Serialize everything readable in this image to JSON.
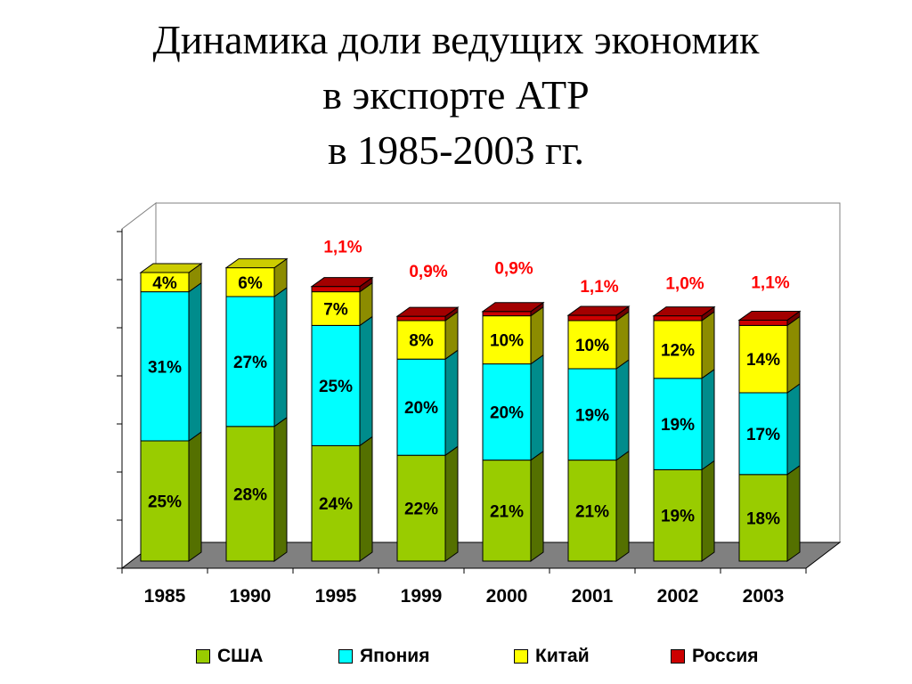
{
  "slide": {
    "title_lines": [
      "Динамика доли ведущих экономик",
      "в экспорте АТР",
      "в 1985-2003 гг."
    ]
  },
  "chart_data": {
    "type": "bar",
    "stacked": true,
    "three_d": true,
    "title": "Динамика доли ведущих экономик в экспорте АТР в 1985-2003 гг.",
    "xlabel": "",
    "ylabel": "",
    "categories": [
      "1985",
      "1990",
      "1995",
      "1999",
      "2000",
      "2001",
      "2002",
      "2003"
    ],
    "ylim": [
      0,
      70
    ],
    "y_tick_labels_shown": false,
    "legend_position": "bottom",
    "series": [
      {
        "name": "США",
        "color": "#99cc00",
        "values": [
          25,
          28,
          24,
          22,
          21,
          21,
          19,
          18
        ],
        "labels": [
          "25%",
          "28%",
          "24%",
          "22%",
          "21%",
          "21%",
          "19%",
          "18%"
        ],
        "label_color": "#000000"
      },
      {
        "name": "Япония",
        "color": "#00ffff",
        "values": [
          31,
          27,
          25,
          20,
          20,
          19,
          19,
          17
        ],
        "labels": [
          "31%",
          "27%",
          "25%",
          "20%",
          "20%",
          "19%",
          "19%",
          "17%"
        ],
        "label_color": "#000000"
      },
      {
        "name": "Китай",
        "color": "#ffff00",
        "values": [
          4,
          6,
          7,
          8,
          10,
          10,
          12,
          14
        ],
        "labels": [
          "4%",
          "6%",
          "7%",
          "8%",
          "10%",
          "10%",
          "12%",
          "14%"
        ],
        "label_color": "#000000"
      },
      {
        "name": "Россия",
        "color": "#cc0000",
        "values": [
          0,
          0,
          1.1,
          0.9,
          0.9,
          1.1,
          1.0,
          1.1
        ],
        "labels": [
          "",
          "",
          "1,1%",
          "0,9%",
          "0,9%",
          "1,1%",
          "1,0%",
          "1,1%"
        ],
        "label_color": "#ff0000"
      }
    ]
  }
}
